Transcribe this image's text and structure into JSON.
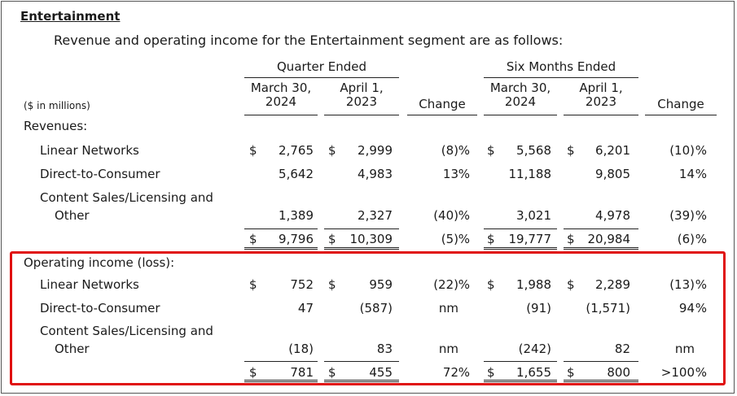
{
  "section_title": "Entertainment",
  "intro": "Revenue and operating income for the Entertainment segment are as follows:",
  "headers": {
    "quarter_group": "Quarter Ended",
    "six_group": "Six Months Ended",
    "unit_note": "($ in millions)",
    "q_cur": [
      "March 30,",
      "2024"
    ],
    "q_prev": [
      "April 1,",
      "2023"
    ],
    "s_cur": [
      "March 30,",
      "2024"
    ],
    "s_prev": [
      "April 1,",
      "2023"
    ],
    "change": "Change"
  },
  "revenues": {
    "label": "Revenues:",
    "rows": [
      {
        "label": "Linear Networks",
        "label2": "",
        "q_cur_sym": "$",
        "q_cur": "2,765",
        "q_prev_sym": "$",
        "q_prev": "2,999",
        "q_chg": "(8)",
        "q_pct": "%",
        "s_cur_sym": "$",
        "s_cur": "5,568",
        "s_prev_sym": "$",
        "s_prev": "6,201",
        "s_chg": "(10)",
        "s_pct": "%"
      },
      {
        "label": "Direct-to-Consumer",
        "label2": "",
        "q_cur_sym": "",
        "q_cur": "5,642",
        "q_prev_sym": "",
        "q_prev": "4,983",
        "q_chg": "13",
        "q_pct": "%",
        "s_cur_sym": "",
        "s_cur": "11,188",
        "s_prev_sym": "",
        "s_prev": "9,805",
        "s_chg": "14",
        "s_pct": "%"
      },
      {
        "label": "Content Sales/Licensing and",
        "label2": "Other",
        "q_cur_sym": "",
        "q_cur": "1,389",
        "q_prev_sym": "",
        "q_prev": "2,327",
        "q_chg": "(40)",
        "q_pct": "%",
        "s_cur_sym": "",
        "s_cur": "3,021",
        "s_prev_sym": "",
        "s_prev": "4,978",
        "s_chg": "(39)",
        "s_pct": "%"
      }
    ],
    "total": {
      "q_cur_sym": "$",
      "q_cur": "9,796",
      "q_prev_sym": "$",
      "q_prev": "10,309",
      "q_chg": "(5)",
      "q_pct": "%",
      "s_cur_sym": "$",
      "s_cur": "19,777",
      "s_prev_sym": "$",
      "s_prev": "20,984",
      "s_chg": "(6)",
      "s_pct": "%"
    }
  },
  "operating": {
    "label": "Operating income (loss):",
    "rows": [
      {
        "label": "Linear Networks",
        "label2": "",
        "q_cur_sym": "$",
        "q_cur": "752",
        "q_prev_sym": "$",
        "q_prev": "959",
        "q_chg": "(22)",
        "q_pct": "%",
        "s_cur_sym": "$",
        "s_cur": "1,988",
        "s_prev_sym": "$",
        "s_prev": "2,289",
        "s_chg": "(13)",
        "s_pct": "%"
      },
      {
        "label": "Direct-to-Consumer",
        "label2": "",
        "q_cur_sym": "",
        "q_cur": "47",
        "q_prev_sym": "",
        "q_prev": "(587)",
        "q_chg": "nm",
        "q_pct": "",
        "s_cur_sym": "",
        "s_cur": "(91)",
        "s_prev_sym": "",
        "s_prev": "(1,571)",
        "s_chg": "94",
        "s_pct": "%"
      },
      {
        "label": "Content Sales/Licensing and",
        "label2": "Other",
        "q_cur_sym": "",
        "q_cur": "(18)",
        "q_prev_sym": "",
        "q_prev": "83",
        "q_chg": "nm",
        "q_pct": "",
        "s_cur_sym": "",
        "s_cur": "(242)",
        "s_prev_sym": "",
        "s_prev": "82",
        "s_chg": "nm",
        "s_pct": ""
      }
    ],
    "total": {
      "q_cur_sym": "$",
      "q_cur": "781",
      "q_prev_sym": "$",
      "q_prev": "455",
      "q_chg": "72",
      "q_pct": "%",
      "s_cur_sym": "$",
      "s_cur": "1,655",
      "s_prev_sym": "$",
      "s_prev": "800",
      "s_chg": ">100",
      "s_pct": "%"
    }
  },
  "highlight_color": "#e01010"
}
